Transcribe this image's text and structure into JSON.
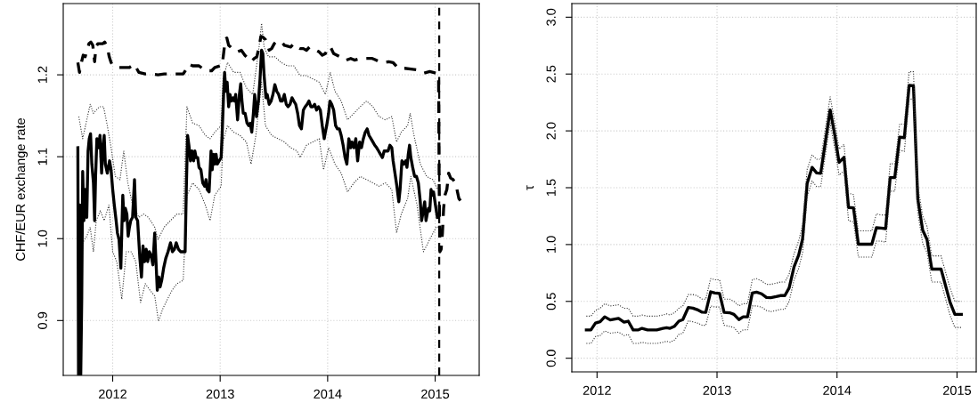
{
  "chart_data": [
    {
      "type": "line",
      "ylabel": "CHF/EUR exchange rate",
      "xlim": [
        2011.54,
        2015.41
      ],
      "xticks": [
        2012,
        2013,
        2014,
        2015
      ],
      "ylim": [
        0.833,
        1.287
      ],
      "yticks": [
        0.9,
        {
          "value": 1,
          "label": "1.0"
        },
        1.1,
        1.2
      ],
      "grid": true,
      "marker": "none",
      "ref_lines": [
        {
          "axis": "x",
          "value": 2015.038,
          "color": "#000000",
          "line_style": "dashed"
        }
      ],
      "series": [
        {
          "color": "#333333",
          "line_style": "dotted",
          "x": [
            2011.685,
            2011.721,
            2011.759,
            2011.791,
            2011.821,
            2011.847,
            2011.876,
            2011.915,
            2011.95,
            2011.985,
            2012.024,
            2012.068,
            2012.103,
            2012.141,
            2012.185,
            2012.244,
            2012.288,
            2012.332,
            2012.391,
            2012.421,
            2012.479,
            2012.538,
            2012.597,
            2012.656,
            2012.691,
            2012.744,
            2012.803,
            2012.862,
            2012.906,
            2012.95,
            2013.009,
            2013.026,
            2013.068,
            2013.126,
            2013.185,
            2013.244,
            2013.303,
            2013.362,
            2013.385,
            2013.409,
            2013.45,
            2013.509,
            2013.568,
            2013.626,
            2013.685,
            2013.744,
            2013.803,
            2013.862,
            2013.921,
            2013.979,
            2014.024,
            2014.068,
            2014.126,
            2014.185,
            2014.244,
            2014.303,
            2014.362,
            2014.421,
            2014.479,
            2014.538,
            2014.597,
            2014.641,
            2014.685,
            2014.744,
            2014.768,
            2014.803,
            2014.862,
            2014.921,
            2014.979,
            2015.024
          ],
          "values": [
            1.149,
            1.122,
            1.145,
            1.164,
            1.153,
            1.157,
            1.161,
            1.161,
            1.138,
            1.111,
            1.076,
            1.072,
            1.107,
            1.068,
            1.041,
            1.026,
            1.03,
            1.026,
            1.014,
            0.999,
            1.014,
            1.022,
            1.03,
            1.03,
            1.161,
            1.141,
            1.138,
            1.126,
            1.122,
            1.13,
            1.138,
            1.195,
            1.215,
            1.203,
            1.203,
            1.184,
            1.176,
            1.234,
            1.263,
            1.234,
            1.222,
            1.222,
            1.215,
            1.211,
            1.211,
            1.199,
            1.199,
            1.195,
            1.191,
            1.176,
            1.203,
            1.18,
            1.168,
            1.145,
            1.153,
            1.161,
            1.168,
            1.161,
            1.149,
            1.145,
            1.149,
            1.118,
            1.13,
            1.138,
            1.153,
            1.126,
            1.091,
            1.076,
            1.072,
            1.06
          ]
        },
        {
          "color": "#333333",
          "line_style": "dotted",
          "x": [
            2011.685,
            2011.721,
            2011.759,
            2011.791,
            2011.821,
            2011.847,
            2011.885,
            2011.921,
            2011.965,
            2012.0,
            2012.038,
            2012.085,
            2012.126,
            2012.171,
            2012.215,
            2012.259,
            2012.303,
            2012.347,
            2012.391,
            2012.426,
            2012.465,
            2012.509,
            2012.553,
            2012.597,
            2012.656,
            2012.691,
            2012.744,
            2012.803,
            2012.862,
            2012.906,
            2012.95,
            2013.009,
            2013.026,
            2013.068,
            2013.126,
            2013.185,
            2013.244,
            2013.288,
            2013.332,
            2013.385,
            2013.421,
            2013.479,
            2013.538,
            2013.597,
            2013.656,
            2013.715,
            2013.744,
            2013.803,
            2013.862,
            2013.921,
            2013.962,
            2014.009,
            2014.068,
            2014.126,
            2014.185,
            2014.244,
            2014.303,
            2014.362,
            2014.421,
            2014.479,
            2014.538,
            2014.597,
            2014.641,
            2014.685,
            2014.744,
            2014.774,
            2014.832,
            2014.891,
            2014.95,
            2015.009,
            2015.032
          ],
          "values": [
            0.834,
            0.995,
            1.003,
            1.014,
            0.984,
            1.022,
            1.034,
            1.022,
            1.041,
            0.984,
            0.972,
            0.926,
            0.984,
            0.984,
            0.972,
            0.922,
            0.945,
            0.937,
            0.93,
            0.899,
            0.914,
            0.926,
            0.937,
            0.945,
            0.949,
            1.053,
            1.068,
            1.06,
            1.041,
            1.022,
            1.053,
            1.064,
            1.118,
            1.138,
            1.13,
            1.126,
            1.118,
            1.091,
            1.126,
            1.191,
            1.138,
            1.126,
            1.122,
            1.118,
            1.111,
            1.107,
            1.099,
            1.114,
            1.118,
            1.122,
            1.084,
            1.111,
            1.091,
            1.08,
            1.057,
            1.068,
            1.076,
            1.072,
            1.068,
            1.064,
            1.068,
            1.06,
            1.007,
            1.03,
            1.049,
            1.076,
            1.041,
            0.984,
            0.999,
            1.014,
            1.014
          ]
        },
        {
          "color": "#000000",
          "line_style": "dashed",
          "x": [
            2011.676,
            2011.691,
            2011.709,
            2011.726,
            2011.744,
            2011.762,
            2011.779,
            2011.797,
            2011.815,
            2011.832,
            2011.844,
            2011.862,
            2011.885,
            2011.909,
            2011.926,
            2011.95,
            2011.968,
            2011.985,
            2012.009,
            2012.038,
            2012.068,
            2012.112,
            2012.156,
            2012.2,
            2012.244,
            2012.303,
            2012.362,
            2012.421,
            2012.479,
            2012.538,
            2012.597,
            2012.656,
            2012.685,
            2012.709,
            2012.744,
            2012.803,
            2012.862,
            2012.921,
            2012.95,
            2013.003,
            2013.018,
            2013.032,
            2013.047,
            2013.062,
            2013.079,
            2013.097,
            2013.126,
            2013.162,
            2013.197,
            2013.229,
            2013.259,
            2013.288,
            2013.318,
            2013.341,
            2013.362,
            2013.379,
            2013.397,
            2013.421,
            2013.438,
            2013.456,
            2013.479,
            2013.503,
            2013.526,
            2013.55,
            2013.574,
            2013.597,
            2013.626,
            2013.656,
            2013.685,
            2013.715,
            2013.744,
            2013.774,
            2013.803,
            2013.832,
            2013.862,
            2013.891,
            2013.921,
            2013.95,
            2013.979,
            2014.009,
            2014.026,
            2014.056,
            2014.085,
            2014.115,
            2014.144,
            2014.174,
            2014.215,
            2014.25,
            2014.303,
            2014.362,
            2014.415,
            2014.45,
            2014.479,
            2014.521,
            2014.568,
            2014.609,
            2014.656,
            2014.715,
            2014.774,
            2014.832,
            2014.891,
            2014.95,
            2015.009,
            2015.032,
            2015.038,
            2015.044,
            2015.056,
            2015.068,
            2015.079,
            2015.091,
            2015.109,
            2015.126,
            2015.144,
            2015.168,
            2015.185,
            2015.203,
            2015.221,
            2015.244,
            2015.268
          ],
          "values": [
            1.215,
            1.203,
            1.215,
            1.224,
            1.222,
            1.23,
            1.238,
            1.24,
            1.236,
            1.216,
            1.234,
            1.238,
            1.238,
            1.238,
            1.24,
            1.234,
            1.222,
            1.215,
            1.211,
            1.209,
            1.209,
            1.209,
            1.209,
            1.213,
            1.203,
            1.201,
            1.201,
            1.2,
            1.201,
            1.201,
            1.201,
            1.201,
            1.207,
            1.213,
            1.211,
            1.211,
            1.205,
            1.205,
            1.209,
            1.211,
            1.211,
            1.226,
            1.243,
            1.245,
            1.236,
            1.234,
            1.23,
            1.228,
            1.23,
            1.224,
            1.22,
            1.216,
            1.22,
            1.222,
            1.234,
            1.247,
            1.246,
            1.243,
            1.238,
            1.23,
            1.232,
            1.238,
            1.241,
            1.241,
            1.24,
            1.236,
            1.235,
            1.234,
            1.238,
            1.234,
            1.232,
            1.232,
            1.23,
            1.234,
            1.232,
            1.23,
            1.228,
            1.224,
            1.226,
            1.234,
            1.234,
            1.226,
            1.224,
            1.222,
            1.218,
            1.218,
            1.22,
            1.218,
            1.22,
            1.22,
            1.22,
            1.218,
            1.216,
            1.215,
            1.216,
            1.215,
            1.208,
            1.208,
            1.207,
            1.206,
            1.202,
            1.204,
            1.202,
            1.2,
            1.06,
            0.984,
            0.987,
            1.007,
            1.037,
            1.053,
            1.06,
            1.08,
            1.074,
            1.072,
            1.068,
            1.06,
            1.049,
            1.045,
            1.043
          ]
        },
        {
          "color": "#000000",
          "line_style": "solid",
          "x": [
            2011.676,
            2011.682,
            2011.694,
            2011.703,
            2011.712,
            2011.721,
            2011.732,
            2011.744,
            2011.759,
            2011.771,
            2011.782,
            2011.794,
            2011.806,
            2011.821,
            2011.832,
            2011.841,
            2011.853,
            2011.868,
            2011.882,
            2011.897,
            2011.909,
            2011.921,
            2011.932,
            2011.95,
            2011.971,
            2011.985,
            2012.0,
            2012.015,
            2012.032,
            2012.044,
            2012.059,
            2012.076,
            2012.085,
            2012.094,
            2012.106,
            2012.118,
            2012.132,
            2012.144,
            2012.156,
            2012.168,
            2012.185,
            2012.203,
            2012.215,
            2012.232,
            2012.253,
            2012.268,
            2012.282,
            2012.297,
            2012.312,
            2012.326,
            2012.341,
            2012.356,
            2012.374,
            2012.391,
            2012.403,
            2012.415,
            2012.429,
            2012.441,
            2012.456,
            2012.474,
            2012.494,
            2012.515,
            2012.538,
            2012.556,
            2012.574,
            2012.591,
            2012.612,
            2012.632,
            2012.656,
            2012.674,
            2012.685,
            2012.697,
            2012.709,
            2012.724,
            2012.738,
            2012.753,
            2012.765,
            2012.776,
            2012.791,
            2012.803,
            2012.821,
            2012.838,
            2012.856,
            2012.868,
            2012.879,
            2012.897,
            2012.915,
            2012.926,
            2012.938,
            2012.95,
            2012.962,
            2012.974,
            2012.991,
            2013.009,
            2013.018,
            2013.032,
            2013.041,
            2013.053,
            2013.065,
            2013.079,
            2013.091,
            2013.106,
            2013.121,
            2013.132,
            2013.144,
            2013.162,
            2013.179,
            2013.191,
            2013.203,
            2013.215,
            2013.232,
            2013.25,
            2013.265,
            2013.279,
            2013.294,
            2013.309,
            2013.321,
            2013.338,
            2013.356,
            2013.371,
            2013.385,
            2013.397,
            2013.409,
            2013.426,
            2013.438,
            2013.456,
            2013.474,
            2013.491,
            2013.509,
            2013.526,
            2013.544,
            2013.562,
            2013.579,
            2013.597,
            2013.615,
            2013.632,
            2013.65,
            2013.668,
            2013.685,
            2013.703,
            2013.721,
            2013.738,
            2013.756,
            2013.774,
            2013.791,
            2013.809,
            2013.826,
            2013.844,
            2013.862,
            2013.879,
            2013.897,
            2013.915,
            2013.932,
            2013.95,
            2013.968,
            2013.979,
            2013.991,
            2014.009,
            2014.021,
            2014.038,
            2014.056,
            2014.074,
            2014.091,
            2014.109,
            2014.126,
            2014.144,
            2014.162,
            2014.179,
            2014.197,
            2014.215,
            2014.226,
            2014.244,
            2014.262,
            2014.279,
            2014.297,
            2014.315,
            2014.332,
            2014.35,
            2014.368,
            2014.385,
            2014.403,
            2014.421,
            2014.438,
            2014.456,
            2014.474,
            2014.491,
            2014.509,
            2014.526,
            2014.544,
            2014.562,
            2014.579,
            2014.597,
            2014.609,
            2014.626,
            2014.644,
            2014.662,
            2014.674,
            2014.691,
            2014.709,
            2014.726,
            2014.738,
            2014.75,
            2014.762,
            2014.774,
            2014.791,
            2014.809,
            2014.826,
            2014.844,
            2014.862,
            2014.874,
            2014.885,
            2014.903,
            2014.915,
            2014.926,
            2014.938,
            2014.95,
            2014.962,
            2014.974,
            2014.985,
            2015.003,
            2015.021
          ],
          "values": [
            1.111,
            0.834,
            1.041,
            0.834,
            0.926,
            1.082,
            1.022,
            1.06,
            1.026,
            1.107,
            1.122,
            1.128,
            1.091,
            1.068,
            1.022,
            1.076,
            1.122,
            1.111,
            1.126,
            1.08,
            1.111,
            1.126,
            1.091,
            1.08,
            1.095,
            1.084,
            1.06,
            1.041,
            1.022,
            1.007,
            0.999,
            0.964,
            1.01,
            1.053,
            1.022,
            1.037,
            1.03,
            1.003,
            1.014,
            1.022,
            1.026,
            1.072,
            1.026,
            1.022,
            0.976,
            0.953,
            0.991,
            0.972,
            0.987,
            0.972,
            0.984,
            0.98,
            0.968,
            1.007,
            0.972,
            0.937,
            0.953,
            0.941,
            0.949,
            0.964,
            0.976,
            0.984,
            0.995,
            0.984,
            0.987,
            0.995,
            0.987,
            0.984,
            0.984,
            0.984,
            1.06,
            1.126,
            1.114,
            1.095,
            1.107,
            1.095,
            1.107,
            1.099,
            1.099,
            1.087,
            1.084,
            1.068,
            1.064,
            1.072,
            1.06,
            1.057,
            1.107,
            1.084,
            1.103,
            1.091,
            1.103,
            1.091,
            1.095,
            1.099,
            1.126,
            1.176,
            1.203,
            1.18,
            1.191,
            1.161,
            1.176,
            1.168,
            1.172,
            1.168,
            1.176,
            1.145,
            1.176,
            1.189,
            1.168,
            1.153,
            1.153,
            1.141,
            1.138,
            1.141,
            1.13,
            1.153,
            1.176,
            1.149,
            1.168,
            1.195,
            1.23,
            1.226,
            1.199,
            1.172,
            1.176,
            1.164,
            1.168,
            1.176,
            1.188,
            1.18,
            1.176,
            1.168,
            1.168,
            1.176,
            1.164,
            1.161,
            1.164,
            1.172,
            1.168,
            1.164,
            1.153,
            1.138,
            1.134,
            1.157,
            1.161,
            1.164,
            1.168,
            1.161,
            1.161,
            1.164,
            1.157,
            1.161,
            1.157,
            1.138,
            1.122,
            1.13,
            1.138,
            1.153,
            1.168,
            1.164,
            1.157,
            1.138,
            1.134,
            1.134,
            1.126,
            1.114,
            1.099,
            1.091,
            1.122,
            1.111,
            1.118,
            1.111,
            1.122,
            1.095,
            1.118,
            1.111,
            1.122,
            1.13,
            1.134,
            1.126,
            1.122,
            1.118,
            1.114,
            1.111,
            1.107,
            1.103,
            1.099,
            1.107,
            1.107,
            1.107,
            1.114,
            1.111,
            1.095,
            1.08,
            1.064,
            1.045,
            1.06,
            1.095,
            1.091,
            1.095,
            1.087,
            1.103,
            1.114,
            1.099,
            1.087,
            1.076,
            1.076,
            1.068,
            1.045,
            1.022,
            1.03,
            1.045,
            1.022,
            1.03,
            1.037,
            1.034,
            1.06,
            1.053,
            1.057,
            1.041,
            1.026
          ]
        }
      ]
    },
    {
      "type": "line",
      "ylabel": "τ",
      "xlim": [
        2011.79,
        2015.16
      ],
      "xticks": [
        2012,
        2013,
        2014,
        2015
      ],
      "ylim": [
        -0.12,
        3.12
      ],
      "yticks": [
        {
          "value": 0,
          "label": "0.0"
        },
        0.5,
        {
          "value": 1,
          "label": "1.0"
        },
        1.5,
        {
          "value": 2,
          "label": "2.0"
        },
        2.5,
        {
          "value": 3,
          "label": "3.0"
        }
      ],
      "grid": true,
      "marker": "none",
      "series": [
        {
          "color": "#000000",
          "line_style": "solid",
          "x": [
            2011.911,
            2011.949,
            2011.987,
            2012.026,
            2012.064,
            2012.11,
            2012.179,
            2012.225,
            2012.26,
            2012.301,
            2012.345,
            2012.375,
            2012.421,
            2012.498,
            2012.549,
            2012.58,
            2012.608,
            2012.646,
            2012.682,
            2012.715,
            2012.761,
            2012.799,
            2012.835,
            2012.876,
            2012.906,
            2012.947,
            2012.983,
            2013.021,
            2013.059,
            2013.105,
            2013.141,
            2013.182,
            2013.218,
            2013.254,
            2013.294,
            2013.33,
            2013.371,
            2013.412,
            2013.448,
            2013.493,
            2013.527,
            2013.565,
            2013.601,
            2013.642,
            2013.68,
            2013.713,
            2013.751,
            2013.792,
            2013.83,
            2013.864,
            2013.943,
            2013.984,
            2014.017,
            2014.058,
            2014.096,
            2014.137,
            2014.178,
            2014.214,
            2014.29,
            2014.328,
            2014.367,
            2014.405,
            2014.443,
            2014.481,
            2014.522,
            2014.561,
            2014.601,
            2014.637,
            2014.673,
            2014.714,
            2014.75,
            2014.79,
            2014.867,
            2014.941,
            2014.982,
            2015.036
          ],
          "values": [
            0.249,
            0.249,
            0.31,
            0.321,
            0.364,
            0.337,
            0.351,
            0.318,
            0.326,
            0.249,
            0.249,
            0.263,
            0.249,
            0.249,
            0.263,
            0.268,
            0.263,
            0.282,
            0.326,
            0.34,
            0.447,
            0.441,
            0.427,
            0.405,
            0.403,
            0.584,
            0.573,
            0.57,
            0.403,
            0.4,
            0.386,
            0.34,
            0.364,
            0.364,
            0.573,
            0.581,
            0.567,
            0.534,
            0.532,
            0.542,
            0.551,
            0.551,
            0.619,
            0.805,
            0.907,
            1.049,
            1.537,
            1.679,
            1.63,
            1.627,
            2.184,
            1.948,
            1.723,
            1.767,
            1.326,
            1.323,
            1.003,
            1.003,
            1.003,
            1.148,
            1.145,
            1.14,
            1.589,
            1.589,
            1.945,
            1.94,
            2.4,
            2.397,
            1.4,
            1.126,
            1.044,
            0.784,
            0.784,
            0.496,
            0.386,
            0.386
          ]
        },
        {
          "color": "#333333",
          "line_style": "dotted",
          "x": [
            2011.911,
            2011.949,
            2011.987,
            2012.026,
            2012.064,
            2012.11,
            2012.179,
            2012.225,
            2012.26,
            2012.301,
            2012.345,
            2012.375,
            2012.421,
            2012.498,
            2012.549,
            2012.58,
            2012.608,
            2012.646,
            2012.682,
            2012.715,
            2012.761,
            2012.799,
            2012.835,
            2012.876,
            2012.906,
            2012.947,
            2012.983,
            2013.021,
            2013.059,
            2013.105,
            2013.141,
            2013.182,
            2013.218,
            2013.254,
            2013.294,
            2013.33,
            2013.371,
            2013.412,
            2013.448,
            2013.493,
            2013.527,
            2013.565,
            2013.601,
            2013.642,
            2013.68,
            2013.713,
            2013.751,
            2013.792,
            2013.83,
            2013.864,
            2013.943,
            2013.984,
            2014.017,
            2014.058,
            2014.096,
            2014.137,
            2014.178,
            2014.214,
            2014.29,
            2014.328,
            2014.367,
            2014.405,
            2014.443,
            2014.481,
            2014.522,
            2014.561,
            2014.601,
            2014.637,
            2014.673,
            2014.714,
            2014.75,
            2014.79,
            2014.867,
            2014.941,
            2014.982,
            2015.036
          ],
          "values": [
            0.37,
            0.37,
            0.42,
            0.44,
            0.48,
            0.46,
            0.47,
            0.44,
            0.44,
            0.37,
            0.37,
            0.38,
            0.37,
            0.37,
            0.38,
            0.39,
            0.38,
            0.4,
            0.44,
            0.46,
            0.56,
            0.56,
            0.55,
            0.52,
            0.52,
            0.7,
            0.69,
            0.69,
            0.52,
            0.52,
            0.5,
            0.46,
            0.48,
            0.48,
            0.69,
            0.7,
            0.68,
            0.65,
            0.65,
            0.66,
            0.67,
            0.67,
            0.74,
            0.92,
            1.03,
            1.17,
            1.66,
            1.79,
            1.75,
            1.75,
            2.3,
            2.06,
            1.84,
            1.88,
            1.45,
            1.44,
            1.12,
            1.12,
            1.12,
            1.27,
            1.26,
            1.26,
            1.71,
            1.71,
            2.06,
            2.06,
            2.52,
            2.52,
            1.52,
            1.25,
            1.16,
            0.9,
            0.9,
            0.62,
            0.5,
            0.5
          ]
        },
        {
          "color": "#333333",
          "line_style": "dotted",
          "x": [
            2011.911,
            2011.949,
            2011.987,
            2012.026,
            2012.064,
            2012.11,
            2012.179,
            2012.225,
            2012.26,
            2012.301,
            2012.345,
            2012.375,
            2012.421,
            2012.498,
            2012.549,
            2012.58,
            2012.608,
            2012.646,
            2012.682,
            2012.715,
            2012.761,
            2012.799,
            2012.835,
            2012.876,
            2012.906,
            2012.947,
            2012.983,
            2013.021,
            2013.059,
            2013.105,
            2013.141,
            2013.182,
            2013.218,
            2013.254,
            2013.294,
            2013.33,
            2013.371,
            2013.412,
            2013.448,
            2013.493,
            2013.527,
            2013.565,
            2013.601,
            2013.642,
            2013.68,
            2013.713,
            2013.751,
            2013.792,
            2013.83,
            2013.864,
            2013.943,
            2013.984,
            2014.017,
            2014.058,
            2014.096,
            2014.137,
            2014.178,
            2014.214,
            2014.29,
            2014.328,
            2014.367,
            2014.405,
            2014.443,
            2014.481,
            2014.522,
            2014.561,
            2014.601,
            2014.637,
            2014.673,
            2014.714,
            2014.75,
            2014.79,
            2014.867,
            2014.941,
            2014.982,
            2015.036
          ],
          "values": [
            0.13,
            0.13,
            0.19,
            0.2,
            0.24,
            0.22,
            0.23,
            0.2,
            0.21,
            0.13,
            0.13,
            0.14,
            0.13,
            0.13,
            0.14,
            0.15,
            0.14,
            0.16,
            0.21,
            0.22,
            0.33,
            0.32,
            0.31,
            0.29,
            0.29,
            0.46,
            0.45,
            0.45,
            0.29,
            0.28,
            0.27,
            0.22,
            0.25,
            0.25,
            0.46,
            0.46,
            0.45,
            0.42,
            0.41,
            0.42,
            0.43,
            0.43,
            0.5,
            0.69,
            0.79,
            0.93,
            1.42,
            1.56,
            1.51,
            1.51,
            2.07,
            1.83,
            1.61,
            1.65,
            1.21,
            1.2,
            0.89,
            0.89,
            0.89,
            1.03,
            1.03,
            1.02,
            1.47,
            1.47,
            1.83,
            1.82,
            2.28,
            2.28,
            1.28,
            1.01,
            0.93,
            0.67,
            0.67,
            0.38,
            0.27,
            0.27
          ]
        }
      ]
    }
  ]
}
